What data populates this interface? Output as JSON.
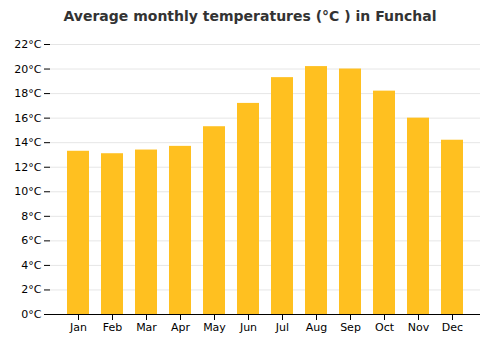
{
  "chart_data": {
    "type": "bar",
    "title": "Average monthly temperatures (°C ) in Funchal",
    "categories": [
      "Jan",
      "Feb",
      "Mar",
      "Apr",
      "May",
      "Jun",
      "Jul",
      "Aug",
      "Sep",
      "Oct",
      "Nov",
      "Dec"
    ],
    "values": [
      13.3,
      13.1,
      13.4,
      13.7,
      15.3,
      17.2,
      19.3,
      20.2,
      20.0,
      18.2,
      16.0,
      14.2
    ],
    "color": "#FFC020",
    "ylim": [
      0,
      22
    ],
    "yticks": [
      {
        "value": 0,
        "label": "0°C"
      },
      {
        "value": 2,
        "label": "2°C"
      },
      {
        "value": 4,
        "label": "4°C"
      },
      {
        "value": 6,
        "label": "6°C"
      },
      {
        "value": 8,
        "label": "8°C"
      },
      {
        "value": 10,
        "label": "10°C"
      },
      {
        "value": 12,
        "label": "12°C"
      },
      {
        "value": 14,
        "label": "14°C"
      },
      {
        "value": 16,
        "label": "16°C"
      },
      {
        "value": 18,
        "label": "18°C"
      },
      {
        "value": 20,
        "label": "20°C"
      },
      {
        "value": 22,
        "label": "22°C"
      }
    ],
    "grid": true
  }
}
